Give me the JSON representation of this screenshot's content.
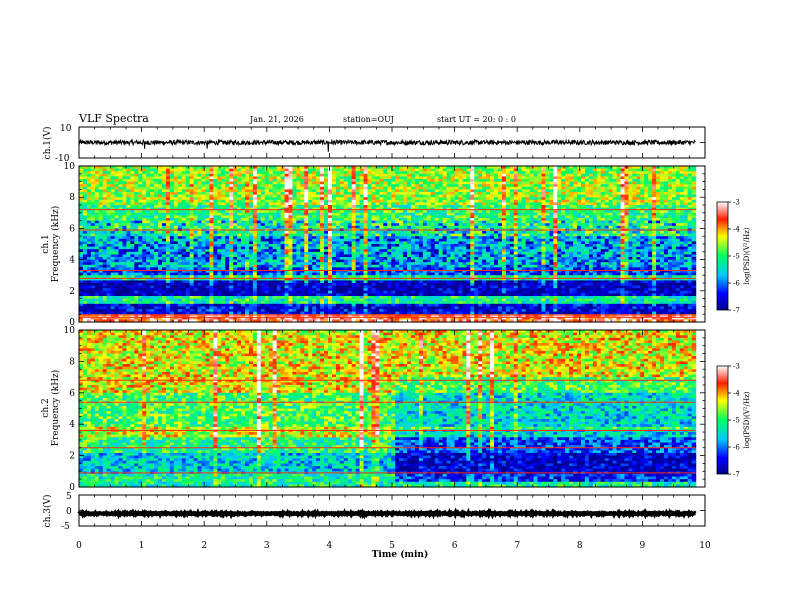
{
  "header": {
    "title": "VLF Spectra",
    "date": "Jan. 21, 2026",
    "station": "station=OUJ",
    "start": "start  UT =   20: 0  : 0"
  },
  "chart_data": [
    {
      "type": "line",
      "panel": "ch1-waveform",
      "ylabel": "ch.1(V)",
      "ylim": [
        -10,
        10
      ],
      "yticks": [
        "10",
        "-10"
      ],
      "baseline": 0,
      "noise_amplitude": 1.5,
      "spikes": [
        {
          "x": 1.05,
          "y": -4
        },
        {
          "x": 2.05,
          "y": -4
        },
        {
          "x": 3.98,
          "y": -6
        }
      ]
    },
    {
      "type": "heatmap",
      "panel": "ch1-spectrogram",
      "ylabel_top": "ch.1",
      "ylabel": "Frequency  (kHz)",
      "ylim": [
        0,
        10
      ],
      "yticks": [
        "0",
        "2",
        "4",
        "6",
        "8",
        "10"
      ],
      "value_range": [
        -7,
        -3
      ],
      "colorbar_ticks": [
        "-3",
        "-4",
        "-5",
        "-6",
        "-7"
      ],
      "colorbar_label": "log(PSD)(V²/Hz)",
      "bands": [
        {
          "f0": 0.0,
          "f1": 0.5,
          "level": -3.5
        },
        {
          "f0": 0.5,
          "f1": 1.2,
          "level": -6.6
        },
        {
          "f0": 1.2,
          "f1": 1.6,
          "level": -5.2
        },
        {
          "f0": 1.6,
          "f1": 2.6,
          "level": -6.8
        },
        {
          "f0": 2.6,
          "f1": 3.0,
          "level": -5.3
        },
        {
          "f0": 3.0,
          "f1": 3.5,
          "level": -6.2
        },
        {
          "f0": 3.5,
          "f1": 5.5,
          "level": -5.6
        },
        {
          "f0": 5.5,
          "f1": 7.5,
          "level": -5.0
        },
        {
          "f0": 7.5,
          "f1": 10.0,
          "level": -4.6
        }
      ]
    },
    {
      "type": "heatmap",
      "panel": "ch2-spectrogram",
      "ylabel_top": "ch.2",
      "ylabel": "Frequency  (kHz)",
      "ylim": [
        0,
        10
      ],
      "yticks": [
        "0",
        "2",
        "4",
        "6",
        "8",
        "10"
      ],
      "value_range": [
        -7,
        -3
      ],
      "colorbar_ticks": [
        "-3",
        "-4",
        "-5",
        "-6",
        "-7"
      ],
      "colorbar_label": "log(PSD)(V²/Hz)",
      "bands": [
        {
          "f0": 0.0,
          "f1": 0.8,
          "level": -5.2
        },
        {
          "f0": 0.8,
          "f1": 2.2,
          "level": -5.6
        },
        {
          "f0": 2.2,
          "f1": 3.2,
          "level": -5.1
        },
        {
          "f0": 3.2,
          "f1": 3.8,
          "level": -4.4
        },
        {
          "f0": 3.8,
          "f1": 6.0,
          "level": -4.9
        },
        {
          "f0": 6.0,
          "f1": 10.0,
          "level": -4.3
        }
      ]
    },
    {
      "type": "line",
      "panel": "ch3-waveform",
      "ylabel": "ch.3(V)",
      "ylim": [
        -5,
        5
      ],
      "yticks": [
        "5",
        "0",
        "-5"
      ],
      "baseline": -1,
      "noise_amplitude": 0.2
    }
  ],
  "x_axis": {
    "xlabel": "Time  (min)",
    "xlim": [
      0,
      10
    ],
    "xticks": [
      "0",
      "1",
      "2",
      "3",
      "4",
      "5",
      "6",
      "7",
      "8",
      "9",
      "10"
    ],
    "data_end": 9.85
  }
}
